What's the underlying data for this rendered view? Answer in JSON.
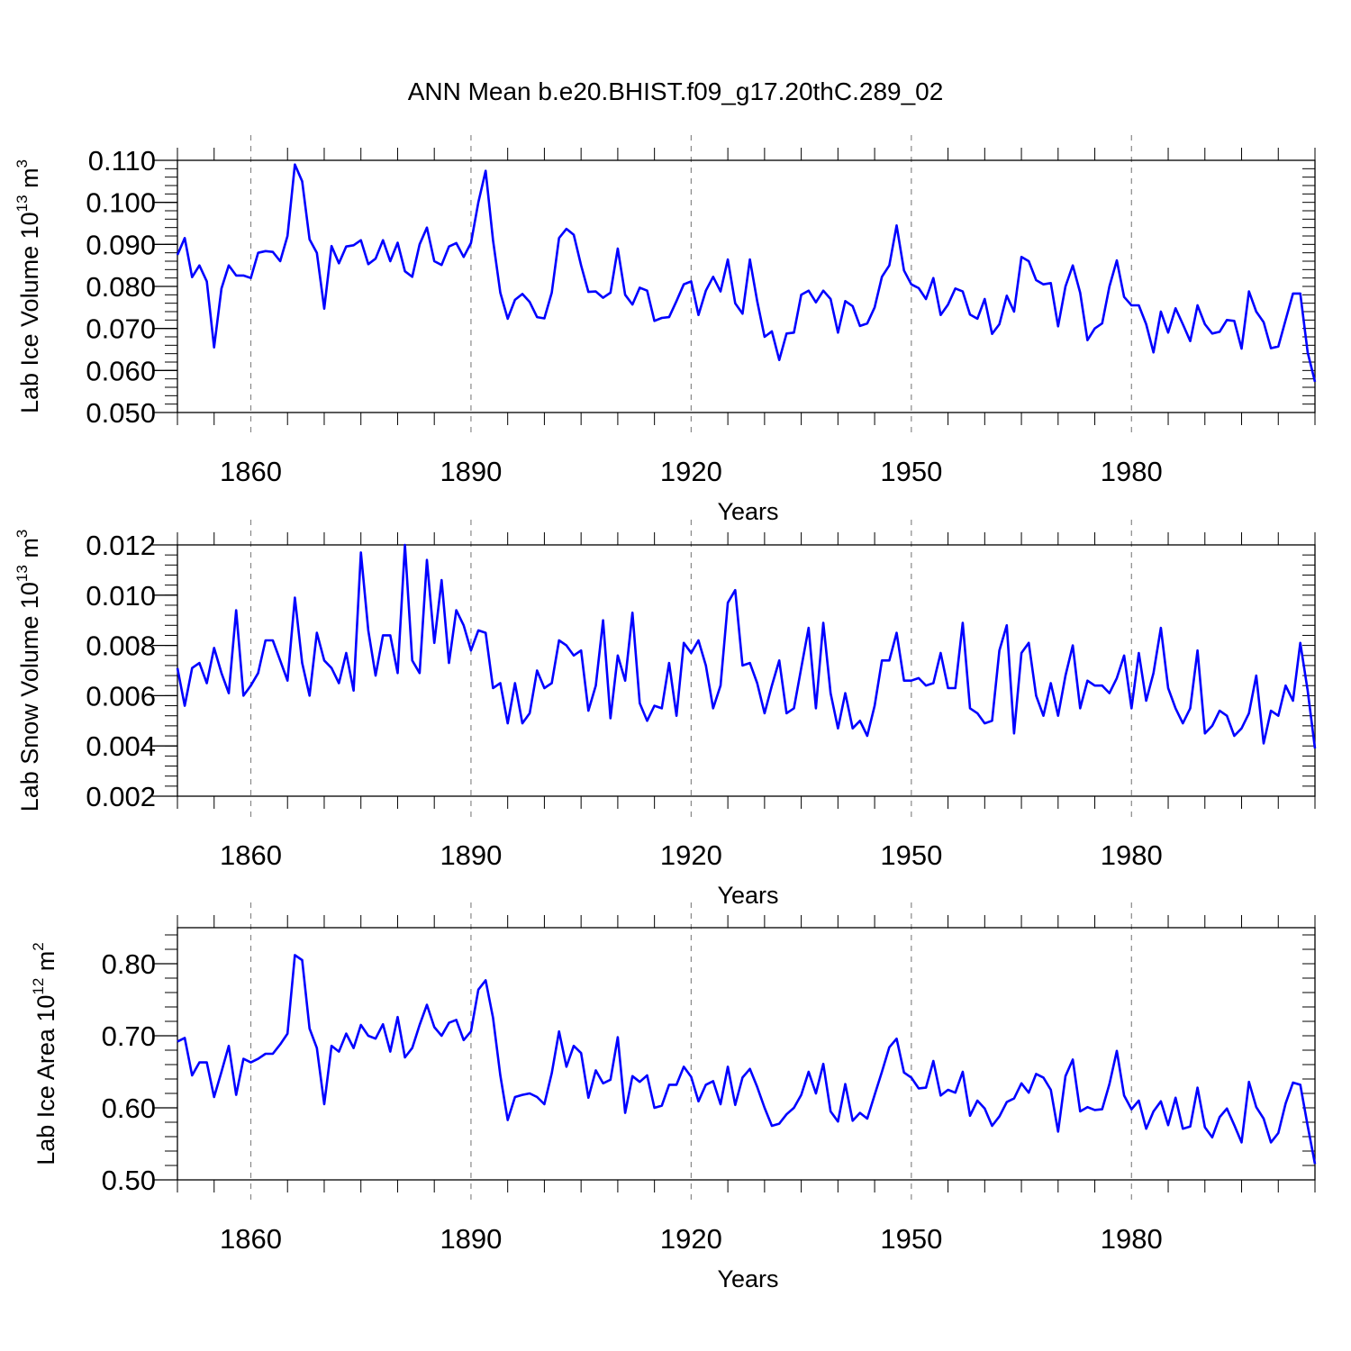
{
  "title": "ANN Mean b.e20.BHIST.f09_g17.20thC.289_02",
  "chart_data": [
    {
      "type": "line",
      "ylabel": "Lab Ice Volume 10^13 m^3",
      "ylabel_parts": {
        "base": "Lab Ice Volume 10",
        "exp": "13",
        "unit": " m",
        "unit_exp": "3"
      },
      "xlabel": "Years",
      "xlim": [
        1850,
        2005
      ],
      "ylim": [
        0.05,
        0.11
      ],
      "yticks": [
        0.05,
        0.06,
        0.07,
        0.08,
        0.09,
        0.1,
        0.11
      ],
      "ytick_labels": [
        "0.050",
        "0.060",
        "0.070",
        "0.080",
        "0.090",
        "0.100",
        "0.110"
      ],
      "y_minor_step": 0.002,
      "xticks": [
        1860,
        1890,
        1920,
        1950,
        1980
      ],
      "xtick_labels": [
        "1860",
        "1890",
        "1920",
        "1950",
        "1980"
      ],
      "x_start": 1850,
      "series": [
        {
          "color": "#0000ff",
          "values": [
            0.0875,
            0.0915,
            0.0822,
            0.085,
            0.0812,
            0.0655,
            0.0795,
            0.085,
            0.0826,
            0.0826,
            0.082,
            0.088,
            0.0884,
            0.0882,
            0.086,
            0.092,
            0.109,
            0.105,
            0.0912,
            0.088,
            0.0747,
            0.0896,
            0.0855,
            0.0895,
            0.0898,
            0.091,
            0.0853,
            0.0866,
            0.091,
            0.086,
            0.0904,
            0.0836,
            0.0823,
            0.09,
            0.094,
            0.086,
            0.0851,
            0.0895,
            0.0903,
            0.087,
            0.0903,
            0.1,
            0.1075,
            0.091,
            0.0785,
            0.0723,
            0.0768,
            0.0782,
            0.0763,
            0.0727,
            0.0724,
            0.0785,
            0.0915,
            0.0937,
            0.0923,
            0.085,
            0.0787,
            0.0788,
            0.0773,
            0.0785,
            0.089,
            0.078,
            0.0757,
            0.0797,
            0.079,
            0.0718,
            0.0725,
            0.0727,
            0.0765,
            0.0805,
            0.0812,
            0.0732,
            0.079,
            0.0823,
            0.0788,
            0.0864,
            0.076,
            0.0735,
            0.0864,
            0.0765,
            0.068,
            0.0693,
            0.0625,
            0.0688,
            0.069,
            0.078,
            0.079,
            0.0762,
            0.079,
            0.077,
            0.069,
            0.0765,
            0.0753,
            0.0706,
            0.0712,
            0.075,
            0.0823,
            0.085,
            0.0945,
            0.0838,
            0.0805,
            0.0796,
            0.077,
            0.082,
            0.0732,
            0.0757,
            0.0795,
            0.0788,
            0.0733,
            0.0723,
            0.077,
            0.0687,
            0.071,
            0.0778,
            0.074,
            0.087,
            0.086,
            0.0815,
            0.0805,
            0.0808,
            0.0705,
            0.08,
            0.085,
            0.0785,
            0.0672,
            0.07,
            0.0712,
            0.08,
            0.0862,
            0.0775,
            0.0755,
            0.0755,
            0.071,
            0.0643,
            0.074,
            0.069,
            0.0748,
            0.071,
            0.067,
            0.0755,
            0.071,
            0.0688,
            0.0692,
            0.072,
            0.0718,
            0.0652,
            0.0788,
            0.074,
            0.0715,
            0.0653,
            0.0657,
            0.072,
            0.0783,
            0.0783,
            0.0643,
            0.0573
          ]
        }
      ]
    },
    {
      "type": "line",
      "ylabel": "Lab Snow Volume 10^13 m^3",
      "ylabel_parts": {
        "base": "Lab Snow Volume 10",
        "exp": "13",
        "unit": " m",
        "unit_exp": "3"
      },
      "xlabel": "Years",
      "xlim": [
        1850,
        2005
      ],
      "ylim": [
        0.002,
        0.012
      ],
      "yticks": [
        0.002,
        0.004,
        0.006,
        0.008,
        0.01,
        0.012
      ],
      "ytick_labels": [
        "0.002",
        "0.004",
        "0.006",
        "0.008",
        "0.010",
        "0.012"
      ],
      "y_minor_step": 0.0004,
      "xticks": [
        1860,
        1890,
        1920,
        1950,
        1980
      ],
      "xtick_labels": [
        "1860",
        "1890",
        "1920",
        "1950",
        "1980"
      ],
      "x_start": 1850,
      "series": [
        {
          "color": "#0000ff",
          "values": [
            0.0071,
            0.0056,
            0.0071,
            0.0073,
            0.0065,
            0.0079,
            0.0069,
            0.0061,
            0.0094,
            0.006,
            0.0064,
            0.0069,
            0.0082,
            0.0082,
            0.0074,
            0.0066,
            0.0099,
            0.0073,
            0.006,
            0.0085,
            0.0074,
            0.0071,
            0.0065,
            0.0077,
            0.0062,
            0.0117,
            0.0086,
            0.0068,
            0.0084,
            0.0084,
            0.0069,
            0.012,
            0.0074,
            0.0069,
            0.0114,
            0.0081,
            0.0106,
            0.0073,
            0.0094,
            0.0088,
            0.0078,
            0.0086,
            0.0085,
            0.0063,
            0.0065,
            0.0049,
            0.0065,
            0.0049,
            0.0053,
            0.007,
            0.0063,
            0.0065,
            0.0082,
            0.008,
            0.0076,
            0.0078,
            0.0054,
            0.0064,
            0.009,
            0.0051,
            0.0076,
            0.0066,
            0.0093,
            0.0057,
            0.005,
            0.0056,
            0.0055,
            0.0073,
            0.0052,
            0.0081,
            0.0077,
            0.0082,
            0.0072,
            0.0055,
            0.0064,
            0.0097,
            0.0102,
            0.0072,
            0.0073,
            0.0065,
            0.0053,
            0.0064,
            0.0074,
            0.0053,
            0.0055,
            0.0071,
            0.0087,
            0.0055,
            0.0089,
            0.0061,
            0.0047,
            0.0061,
            0.0047,
            0.005,
            0.0044,
            0.0056,
            0.0074,
            0.0074,
            0.0085,
            0.0066,
            0.0066,
            0.0067,
            0.0064,
            0.0065,
            0.0077,
            0.0063,
            0.0063,
            0.0089,
            0.0055,
            0.0053,
            0.0049,
            0.005,
            0.0078,
            0.0088,
            0.0045,
            0.0077,
            0.0081,
            0.006,
            0.0052,
            0.0065,
            0.0052,
            0.0068,
            0.008,
            0.0055,
            0.0066,
            0.0064,
            0.0064,
            0.0061,
            0.0067,
            0.0076,
            0.0055,
            0.0077,
            0.0058,
            0.0069,
            0.0087,
            0.0063,
            0.0055,
            0.0049,
            0.0055,
            0.0078,
            0.0045,
            0.0048,
            0.0054,
            0.0052,
            0.0044,
            0.0047,
            0.0053,
            0.0068,
            0.0041,
            0.0054,
            0.0052,
            0.0064,
            0.0058,
            0.0081,
            0.0062,
            0.0039
          ]
        }
      ]
    },
    {
      "type": "line",
      "ylabel": "Lab Ice Area 10^12 m^2",
      "ylabel_parts": {
        "base": "Lab Ice Area 10",
        "exp": "12",
        "unit": " m",
        "unit_exp": "2"
      },
      "xlabel": "Years",
      "xlim": [
        1850,
        2005
      ],
      "ylim": [
        0.5,
        0.85
      ],
      "yticks": [
        0.5,
        0.6,
        0.7,
        0.8
      ],
      "ytick_labels": [
        "0.50",
        "0.60",
        "0.70",
        "0.80"
      ],
      "y_minor_step": 0.02,
      "xticks": [
        1860,
        1890,
        1920,
        1950,
        1980
      ],
      "xtick_labels": [
        "1860",
        "1890",
        "1920",
        "1950",
        "1980"
      ],
      "x_start": 1850,
      "series": [
        {
          "color": "#0000ff",
          "values": [
            0.692,
            0.697,
            0.645,
            0.663,
            0.663,
            0.615,
            0.65,
            0.686,
            0.618,
            0.668,
            0.663,
            0.668,
            0.675,
            0.675,
            0.688,
            0.703,
            0.812,
            0.805,
            0.71,
            0.683,
            0.605,
            0.686,
            0.678,
            0.703,
            0.683,
            0.715,
            0.7,
            0.696,
            0.716,
            0.678,
            0.726,
            0.67,
            0.683,
            0.715,
            0.743,
            0.712,
            0.7,
            0.718,
            0.722,
            0.694,
            0.706,
            0.764,
            0.777,
            0.725,
            0.645,
            0.583,
            0.615,
            0.618,
            0.62,
            0.615,
            0.605,
            0.648,
            0.706,
            0.657,
            0.686,
            0.676,
            0.614,
            0.652,
            0.634,
            0.639,
            0.698,
            0.593,
            0.644,
            0.636,
            0.645,
            0.6,
            0.603,
            0.632,
            0.632,
            0.657,
            0.643,
            0.609,
            0.632,
            0.637,
            0.605,
            0.657,
            0.604,
            0.642,
            0.654,
            0.629,
            0.6,
            0.575,
            0.578,
            0.591,
            0.6,
            0.618,
            0.65,
            0.62,
            0.661,
            0.595,
            0.581,
            0.633,
            0.582,
            0.593,
            0.585,
            0.618,
            0.65,
            0.684,
            0.696,
            0.649,
            0.642,
            0.627,
            0.628,
            0.665,
            0.617,
            0.625,
            0.621,
            0.65,
            0.589,
            0.61,
            0.599,
            0.575,
            0.588,
            0.608,
            0.613,
            0.634,
            0.621,
            0.647,
            0.642,
            0.625,
            0.567,
            0.644,
            0.667,
            0.595,
            0.601,
            0.597,
            0.598,
            0.633,
            0.679,
            0.617,
            0.598,
            0.61,
            0.571,
            0.595,
            0.609,
            0.576,
            0.614,
            0.571,
            0.574,
            0.628,
            0.573,
            0.559,
            0.587,
            0.599,
            0.576,
            0.552,
            0.636,
            0.601,
            0.585,
            0.552,
            0.565,
            0.606,
            0.635,
            0.632,
            0.575,
            0.522
          ]
        }
      ]
    }
  ]
}
